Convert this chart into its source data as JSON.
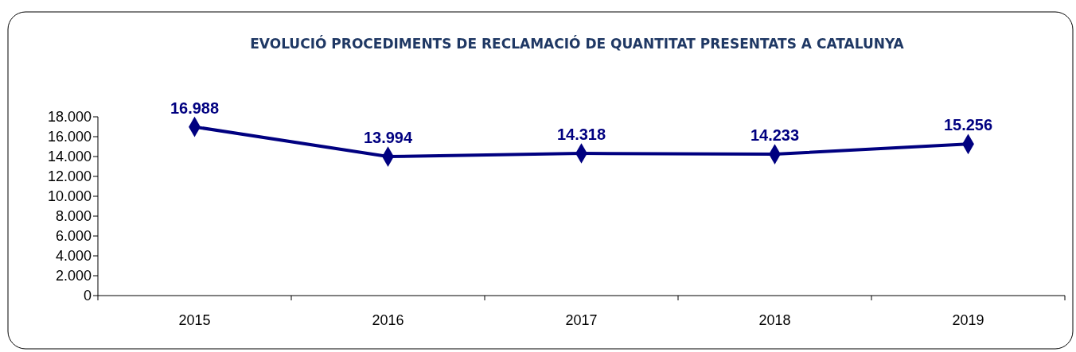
{
  "chart_data": {
    "type": "line",
    "title": "EVOLUCIÓ PROCEDIMENTS DE RECLAMACIÓ DE QUANTITAT PRESENTATS A CATALUNYA",
    "categories": [
      "2015",
      "2016",
      "2017",
      "2018",
      "2019"
    ],
    "series": [
      {
        "color": "#000080",
        "values": [
          16988,
          13994,
          14318,
          14233,
          15256
        ],
        "value_labels": [
          "16.988",
          "13.994",
          "14.318",
          "14.233",
          "15.256"
        ]
      }
    ],
    "ylim": [
      0,
      18000
    ],
    "yticks": [
      {
        "value": 0,
        "label": "0"
      },
      {
        "value": 2000,
        "label": "2.000"
      },
      {
        "value": 4000,
        "label": "4.000"
      },
      {
        "value": 6000,
        "label": "6.000"
      },
      {
        "value": 8000,
        "label": "8.000"
      },
      {
        "value": 10000,
        "label": "10.000"
      },
      {
        "value": 12000,
        "label": "12.000"
      },
      {
        "value": 14000,
        "label": "14.000"
      },
      {
        "value": 16000,
        "label": "16.000"
      },
      {
        "value": 18000,
        "label": "18.000"
      }
    ],
    "grid": false,
    "marker": "diamond",
    "line_style": "solid"
  }
}
